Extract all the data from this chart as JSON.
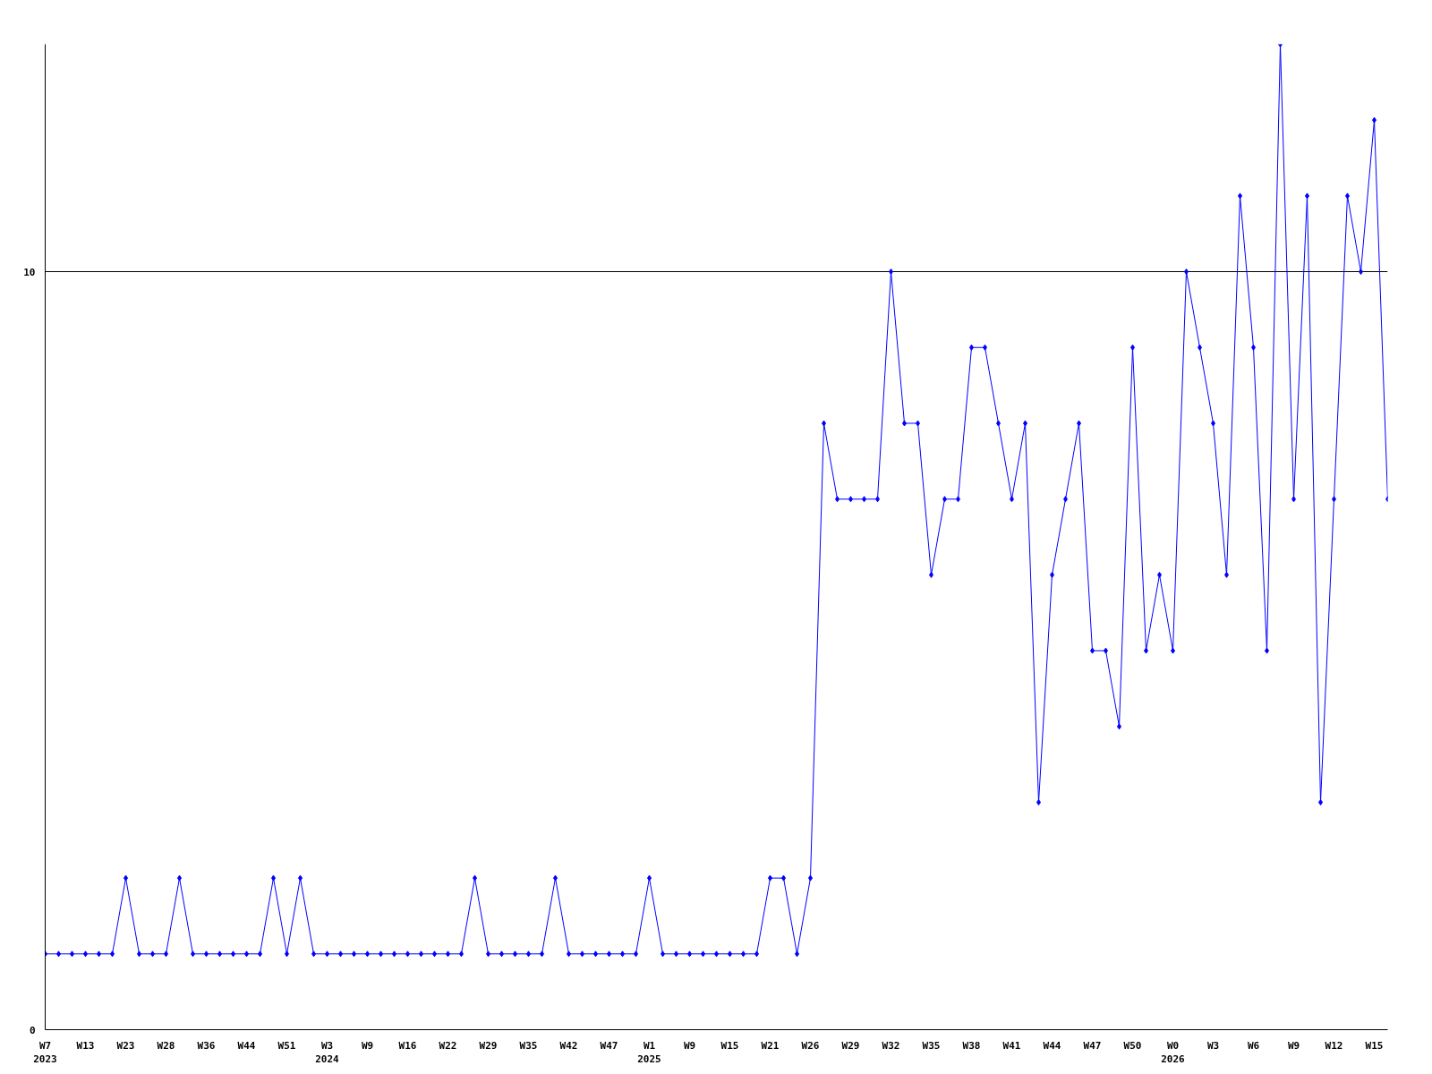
{
  "chart_data": {
    "type": "line",
    "categories": [
      "W7\n2023",
      null,
      null,
      "W13",
      null,
      null,
      "W23",
      null,
      null,
      "W28",
      null,
      null,
      "W36",
      null,
      null,
      "W44",
      null,
      null,
      "W51",
      null,
      null,
      "W3\n2024",
      null,
      null,
      "W9",
      null,
      null,
      "W16",
      null,
      null,
      "W22",
      null,
      null,
      "W29",
      null,
      null,
      "W35",
      null,
      null,
      "W42",
      null,
      null,
      "W47",
      null,
      null,
      "W1\n2025",
      null,
      null,
      "W9",
      null,
      null,
      "W15",
      null,
      null,
      "W21",
      null,
      null,
      "W26",
      null,
      null,
      "W29",
      null,
      null,
      "W32",
      null,
      null,
      "W35",
      null,
      null,
      "W38",
      null,
      null,
      "W41",
      null,
      null,
      "W44",
      null,
      null,
      "W47",
      null,
      null,
      "W50",
      null,
      null,
      "W0\n2026",
      null,
      null,
      "W3",
      null,
      null,
      "W6",
      null,
      null,
      "W9",
      null,
      null,
      "W12",
      null,
      null,
      "W15",
      null
    ],
    "series": [
      {
        "color": "#0000ff",
        "values": [
          1,
          1,
          1,
          1,
          1,
          1,
          2,
          1,
          1,
          1,
          2,
          1,
          1,
          1,
          1,
          1,
          1,
          2,
          1,
          2,
          1,
          1,
          1,
          1,
          1,
          1,
          1,
          1,
          1,
          1,
          1,
          1,
          2,
          1,
          1,
          1,
          1,
          1,
          2,
          1,
          1,
          1,
          1,
          1,
          1,
          2,
          1,
          1,
          1,
          1,
          1,
          1,
          1,
          1,
          2,
          2,
          1,
          2,
          8,
          7,
          7,
          7,
          7,
          10,
          8,
          8,
          6,
          7,
          7,
          9,
          9,
          8,
          7,
          8,
          3,
          6,
          7,
          8,
          5,
          5,
          4,
          9,
          5,
          6,
          5,
          10,
          9,
          8,
          6,
          11,
          9,
          5,
          13,
          7,
          11,
          3,
          7,
          11,
          10,
          12,
          7
        ]
      }
    ],
    "ylim": [
      0,
      13
    ],
    "yticks": [
      0,
      10
    ],
    "grid": "y",
    "marker": "diamond",
    "line_style": "solid"
  }
}
